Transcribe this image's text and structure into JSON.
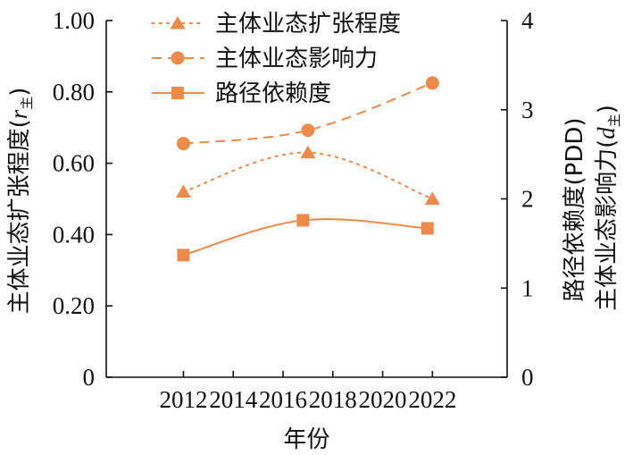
{
  "chart_data": {
    "type": "line",
    "x": [
      2012,
      2017,
      2022
    ],
    "xticks": [
      "2012",
      "2014",
      "2016",
      "2018",
      "2020",
      "2022"
    ],
    "xlabel": "年份",
    "xlim": [
      2008.9,
      2025.0
    ],
    "left_axis": {
      "ylabel_main": "主体业态扩张程度(",
      "ylabel_var": "r",
      "ylabel_sub": "主",
      "ylabel_end": ")",
      "ylim": [
        0,
        1.0
      ],
      "ticks": [
        "0",
        "0.20",
        "0.40",
        "0.60",
        "0.80",
        "1.00"
      ]
    },
    "right_axis": {
      "ylabel_line1": "路径依赖度(PDD)",
      "ylabel_line2_main": "主体业态影响力(",
      "ylabel_line2_var": "d",
      "ylabel_line2_sub": "主",
      "ylabel_line2_end": ")",
      "ylim": [
        0,
        4
      ],
      "ticks": [
        "0",
        "1",
        "2",
        "3",
        "4"
      ]
    },
    "series": [
      {
        "name": "主体业态扩张程度",
        "axis": "left",
        "marker": "triangle",
        "linestyle": "dotted",
        "color": "#ee8a4a",
        "points": [
          [
            2012,
            0.52
          ],
          [
            2017,
            0.63
          ],
          [
            2022,
            0.5
          ]
        ]
      },
      {
        "name": "主体业态影响力",
        "axis": "right",
        "marker": "circle",
        "linestyle": "dashed",
        "color": "#ee8a4a",
        "points": [
          [
            2012,
            2.62
          ],
          [
            2017,
            2.77
          ],
          [
            2022,
            3.3
          ]
        ]
      },
      {
        "name": "路径依赖度",
        "axis": "right",
        "marker": "square",
        "linestyle": "solid",
        "color": "#ee8a4a",
        "points": [
          [
            2012,
            1.37
          ],
          [
            2016.8,
            1.76
          ],
          [
            2021.8,
            1.67
          ]
        ]
      }
    ],
    "legend_position": "top-center"
  }
}
